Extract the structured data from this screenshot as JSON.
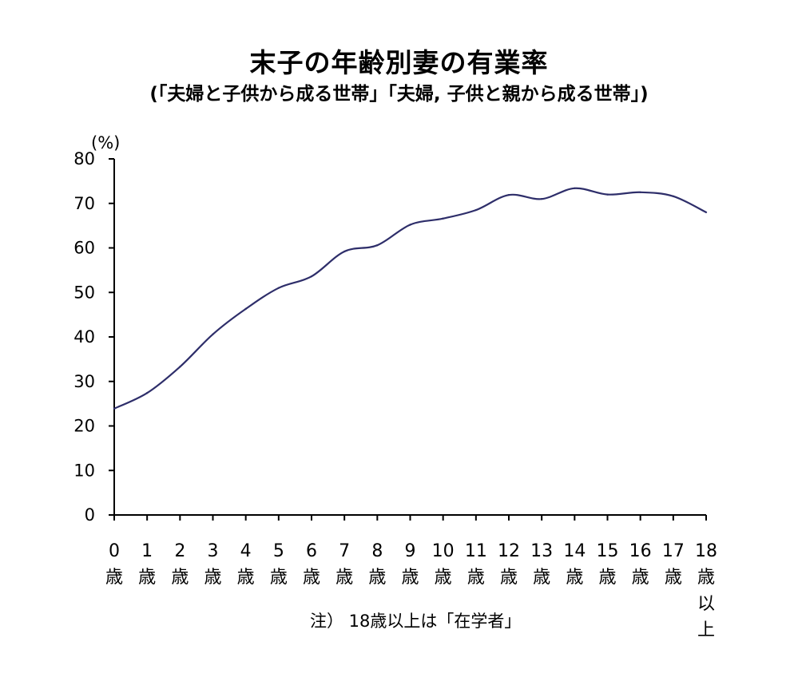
{
  "chart_data": {
    "type": "line",
    "title": "末子の年齢別妻の有業率",
    "subtitle": "(「夫婦と子供から成る世帯」「夫婦, 子供と親から成る世帯」)",
    "y_unit": "(%)",
    "ylim": [
      0,
      80
    ],
    "y_ticks": [
      "0",
      "10",
      "20",
      "30",
      "40",
      "50",
      "60",
      "70",
      "80"
    ],
    "categories": [
      {
        "number": "0",
        "suffix": "歳"
      },
      {
        "number": "1",
        "suffix": "歳"
      },
      {
        "number": "2",
        "suffix": "歳"
      },
      {
        "number": "3",
        "suffix": "歳"
      },
      {
        "number": "4",
        "suffix": "歳"
      },
      {
        "number": "5",
        "suffix": "歳"
      },
      {
        "number": "6",
        "suffix": "歳"
      },
      {
        "number": "7",
        "suffix": "歳"
      },
      {
        "number": "8",
        "suffix": "歳"
      },
      {
        "number": "9",
        "suffix": "歳"
      },
      {
        "number": "10",
        "suffix": "歳"
      },
      {
        "number": "11",
        "suffix": "歳"
      },
      {
        "number": "12",
        "suffix": "歳"
      },
      {
        "number": "13",
        "suffix": "歳"
      },
      {
        "number": "14",
        "suffix": "歳"
      },
      {
        "number": "15",
        "suffix": "歳"
      },
      {
        "number": "16",
        "suffix": "歳"
      },
      {
        "number": "17",
        "suffix": "歳"
      },
      {
        "number": "18",
        "suffix": "歳以上"
      }
    ],
    "values": [
      23.9,
      27.4,
      33.3,
      40.6,
      46.3,
      51.0,
      53.6,
      59.2,
      60.6,
      65.2,
      66.6,
      68.5,
      71.9,
      71.0,
      73.4,
      72.0,
      72.5,
      71.6,
      68.0
    ],
    "line_color": "#2e2e6a",
    "grid": false,
    "legend": "none",
    "note": "注） 18歳以上は「在学者」"
  }
}
